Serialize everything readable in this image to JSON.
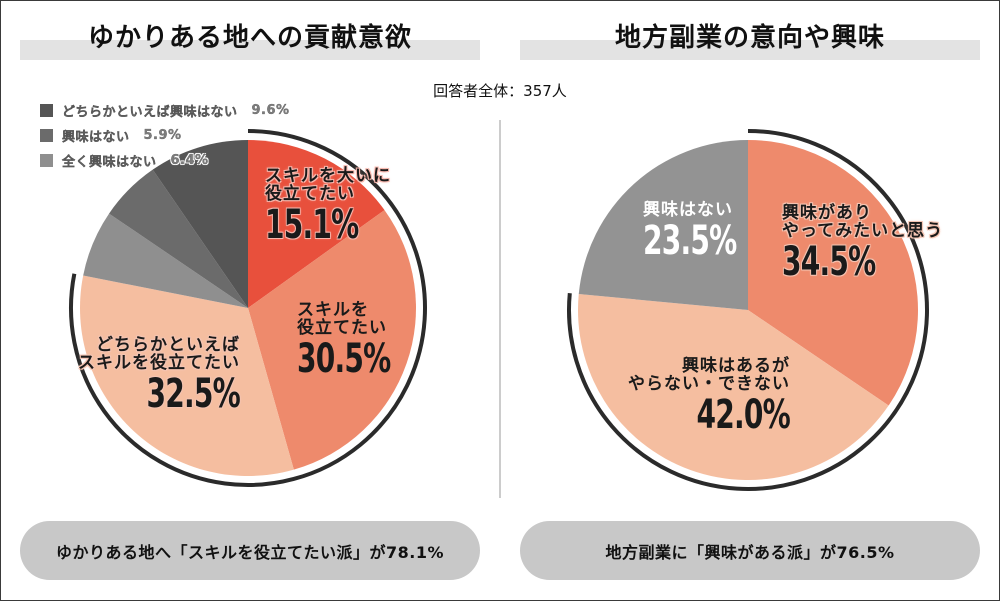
{
  "respondents": "回答者全体：357人",
  "colors": {
    "red_strong": "#e8503c",
    "salmon": "#ee8a6c",
    "peach": "#f5bea0",
    "gray_light": "#8f8f8f",
    "gray_mid": "#6b6b6b",
    "gray_dark": "#555555",
    "gray_right": "#939393",
    "ring": "#2b2b2b",
    "title_bar": "#e3e3e3",
    "summary_bg": "#c8c8c8"
  },
  "left": {
    "title": "ゆかりある地への貢献意欲",
    "legend": [
      {
        "label": "どちらかといえば興味はない",
        "value": "9.6%"
      },
      {
        "label": "興味はない",
        "value": "5.9%"
      },
      {
        "label": "全く興味はない",
        "value": "6.4%"
      }
    ],
    "labels": [
      {
        "line1": "スキルを大いに",
        "line2": "役立てたい",
        "pct": "15.1%"
      },
      {
        "line1": "スキルを",
        "line2": "役立てたい",
        "pct": "30.5%"
      },
      {
        "line1": "どちらかといえば",
        "line2": "スキルを役立てたい",
        "pct": "32.5%"
      }
    ],
    "summary": "ゆかりある地へ「スキルを役立てたい派」が78.1%"
  },
  "right": {
    "title": "地方副業の意向や興味",
    "labels": [
      {
        "line1": "興味があり",
        "line2": "やってみたいと思う",
        "pct": "34.5%"
      },
      {
        "line1": "興味はあるが",
        "line2": "やらない・できない",
        "pct": "42.0%"
      },
      {
        "line1": "興味はない",
        "line2": "",
        "pct": "23.5%"
      }
    ],
    "summary": "地方副業に「興味がある派」が76.5%"
  },
  "chart_data": [
    {
      "type": "pie",
      "title": "ゆかりある地への貢献意欲",
      "categories": [
        "スキルを大いに役立てたい",
        "スキルを役立てたい",
        "どちらかといえばスキルを役立てたい",
        "全く興味はない",
        "興味はない",
        "どちらかといえば興味はない"
      ],
      "values": [
        15.1,
        30.5,
        32.5,
        6.4,
        5.9,
        9.6
      ],
      "colors": [
        "#e8503c",
        "#ee8a6c",
        "#f5bea0",
        "#8f8f8f",
        "#6b6b6b",
        "#555555"
      ],
      "highlight_total": 78.1,
      "highlight_label": "スキルを役立てたい派",
      "start": "top",
      "direction": "clockwise",
      "legend_position": "top-left"
    },
    {
      "type": "pie",
      "title": "地方副業の意向や興味",
      "categories": [
        "興味がありやってみたいと思う",
        "興味はあるがやらない・できない",
        "興味はない"
      ],
      "values": [
        34.5,
        42.0,
        23.5
      ],
      "colors": [
        "#ee8a6c",
        "#f5bea0",
        "#939393"
      ],
      "highlight_total": 76.5,
      "highlight_label": "興味がある派",
      "start": "top",
      "direction": "clockwise"
    }
  ]
}
